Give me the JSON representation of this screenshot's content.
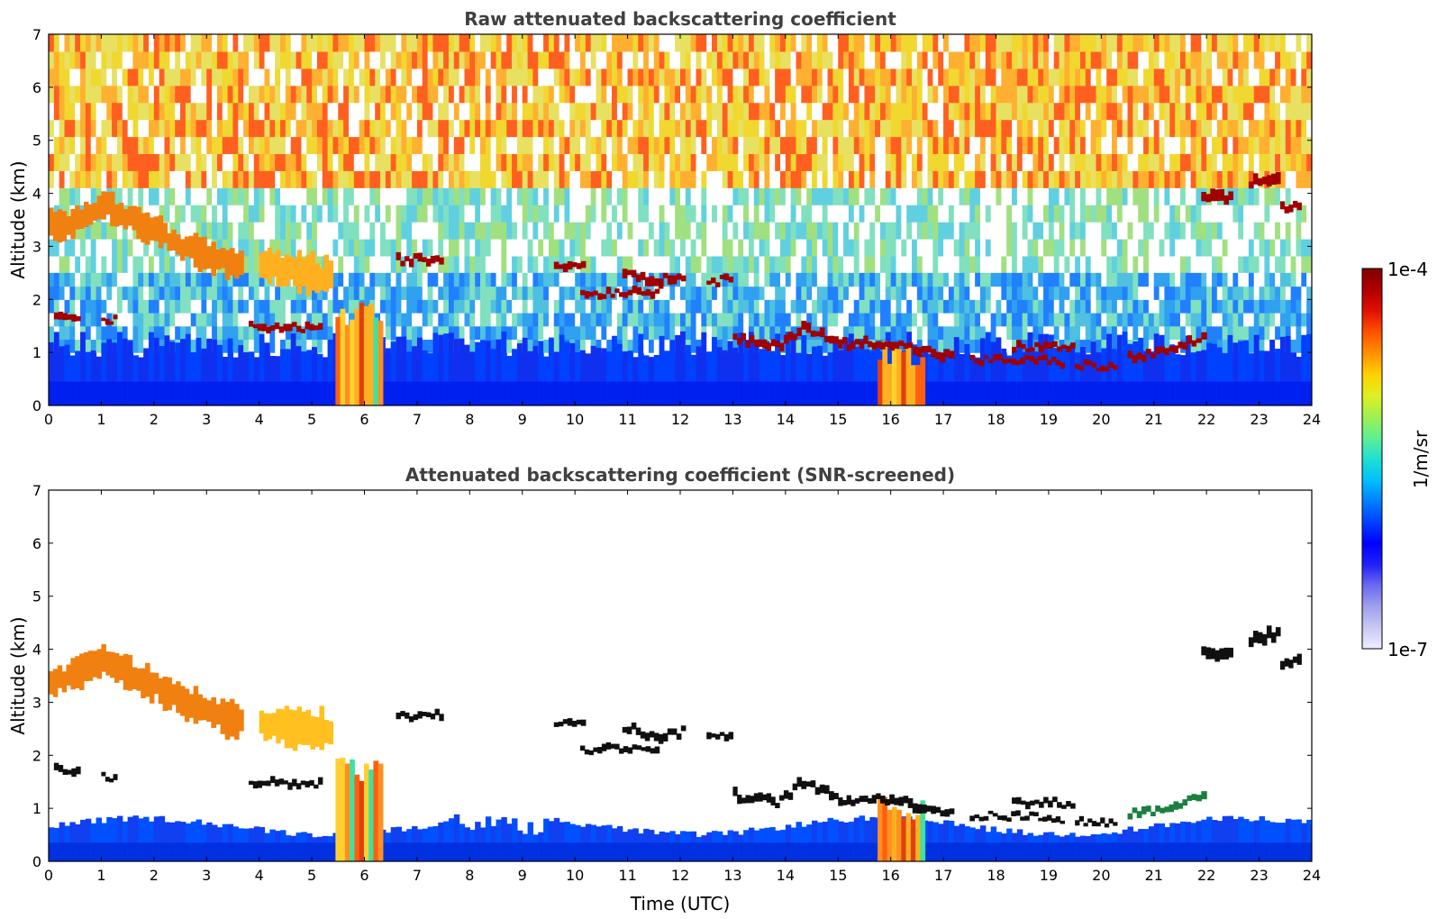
{
  "chart_data": [
    {
      "type": "heatmap",
      "title": "Raw attenuated backscattering coefficient",
      "xlabel": "",
      "ylabel": "Altitude (km)",
      "xlim": [
        0,
        24
      ],
      "ylim": [
        0,
        7
      ],
      "x_ticks": [
        "0",
        "1",
        "2",
        "3",
        "4",
        "5",
        "6",
        "7",
        "8",
        "9",
        "10",
        "11",
        "12",
        "13",
        "14",
        "15",
        "16",
        "17",
        "18",
        "19",
        "20",
        "21",
        "22",
        "23",
        "24"
      ],
      "y_ticks": [
        "0",
        "1",
        "2",
        "3",
        "4",
        "5",
        "6",
        "7"
      ],
      "background": "noisy",
      "features": [
        {
          "kind": "cloud_band",
          "points": [
            [
              0,
              3.4
            ],
            [
              0.5,
              3.5
            ],
            [
              1,
              3.8
            ],
            [
              1.5,
              3.5
            ],
            [
              2,
              3.3
            ],
            [
              2.5,
              3.0
            ],
            [
              3,
              2.8
            ],
            [
              3.7,
              2.6
            ]
          ],
          "thickness": 0.55,
          "color": "#f08010"
        },
        {
          "kind": "cloud_band",
          "points": [
            [
              4.0,
              2.6
            ],
            [
              4.8,
              2.5
            ],
            [
              5.4,
              2.4
            ]
          ],
          "thickness": 0.7,
          "color": "#ffb020"
        },
        {
          "kind": "precip_column",
          "x0": 5.45,
          "x1": 6.35,
          "top": 2.0,
          "color": "#ff8010"
        },
        {
          "kind": "precip_column",
          "x0": 15.75,
          "x1": 16.65,
          "top": 1.25,
          "color": "#ff7010"
        },
        {
          "kind": "cloud_band",
          "points": [
            [
              6.6,
              2.75
            ],
            [
              7.5,
              2.75
            ]
          ],
          "thickness": 0.14,
          "color": "#a00000"
        },
        {
          "kind": "cloud_band",
          "points": [
            [
              9.6,
              2.65
            ],
            [
              10.2,
              2.65
            ]
          ],
          "thickness": 0.14,
          "color": "#a00000"
        },
        {
          "kind": "cloud_band",
          "points": [
            [
              10.9,
              2.55
            ],
            [
              11.5,
              2.35
            ],
            [
              12.1,
              2.45
            ]
          ],
          "thickness": 0.16,
          "color": "#a00000"
        },
        {
          "kind": "cloud_band",
          "points": [
            [
              10.1,
              2.1
            ],
            [
              11.0,
              2.15
            ],
            [
              11.6,
              2.15
            ]
          ],
          "thickness": 0.12,
          "color": "#a00000"
        },
        {
          "kind": "cloud_band",
          "points": [
            [
              12.5,
              2.35
            ],
            [
              13.0,
              2.35
            ]
          ],
          "thickness": 0.12,
          "color": "#a00000"
        },
        {
          "kind": "cloud_band",
          "points": [
            [
              0.1,
              1.75
            ],
            [
              0.6,
              1.7
            ]
          ],
          "thickness": 0.14,
          "color": "#a00000"
        },
        {
          "kind": "cloud_band",
          "points": [
            [
              1.0,
              1.6
            ],
            [
              1.3,
              1.6
            ]
          ],
          "thickness": 0.1,
          "color": "#a00000"
        },
        {
          "kind": "cloud_band",
          "points": [
            [
              3.8,
              1.5
            ],
            [
              5.2,
              1.45
            ]
          ],
          "thickness": 0.12,
          "color": "#a00000"
        },
        {
          "kind": "cloud_band",
          "points": [
            [
              13.0,
              1.25
            ],
            [
              13.8,
              1.1
            ],
            [
              14.3,
              1.5
            ],
            [
              15.0,
              1.15
            ],
            [
              15.8,
              1.2
            ],
            [
              16.5,
              1.05
            ],
            [
              17.2,
              0.9
            ]
          ],
          "thickness": 0.16,
          "color": "#a00000"
        },
        {
          "kind": "cloud_band",
          "points": [
            [
              17.5,
              0.85
            ],
            [
              18.2,
              0.85
            ],
            [
              18.8,
              0.85
            ],
            [
              19.3,
              0.8
            ]
          ],
          "thickness": 0.1,
          "color": "#a00000"
        },
        {
          "kind": "cloud_band",
          "points": [
            [
              18.3,
              1.1
            ],
            [
              19.5,
              1.1
            ]
          ],
          "thickness": 0.12,
          "color": "#a00000"
        },
        {
          "kind": "cloud_band",
          "points": [
            [
              19.5,
              0.75
            ],
            [
              20.3,
              0.72
            ]
          ],
          "thickness": 0.1,
          "color": "#a00000"
        },
        {
          "kind": "cloud_band",
          "points": [
            [
              20.5,
              0.9
            ],
            [
              21.2,
              1.0
            ],
            [
              21.8,
              1.25
            ],
            [
              22.0,
              1.3
            ]
          ],
          "thickness": 0.14,
          "color": "#a00000"
        },
        {
          "kind": "cloud_band",
          "points": [
            [
              21.9,
              3.9
            ],
            [
              22.5,
              3.9
            ]
          ],
          "thickness": 0.2,
          "color": "#a00000"
        },
        {
          "kind": "cloud_band",
          "points": [
            [
              22.8,
              4.2
            ],
            [
              23.4,
              4.3
            ]
          ],
          "thickness": 0.2,
          "color": "#a00000"
        },
        {
          "kind": "cloud_band",
          "points": [
            [
              23.4,
              3.75
            ],
            [
              23.8,
              3.75
            ]
          ],
          "thickness": 0.18,
          "color": "#a00000"
        }
      ]
    },
    {
      "type": "heatmap",
      "title": "Attenuated backscattering coefficient (SNR-screened)",
      "xlabel": "Time (UTC)",
      "ylabel": "Altitude (km)",
      "xlim": [
        0,
        24
      ],
      "ylim": [
        0,
        7
      ],
      "x_ticks": [
        "0",
        "1",
        "2",
        "3",
        "4",
        "5",
        "6",
        "7",
        "8",
        "9",
        "10",
        "11",
        "12",
        "13",
        "14",
        "15",
        "16",
        "17",
        "18",
        "19",
        "20",
        "21",
        "22",
        "23",
        "24"
      ],
      "y_ticks": [
        "0",
        "1",
        "2",
        "3",
        "4",
        "5",
        "6",
        "7"
      ],
      "background": "screened",
      "features": [
        {
          "kind": "cloud_band",
          "points": [
            [
              0,
              3.4
            ],
            [
              0.5,
              3.5
            ],
            [
              1,
              3.8
            ],
            [
              1.5,
              3.5
            ],
            [
              2,
              3.3
            ],
            [
              2.5,
              3.0
            ],
            [
              3,
              2.8
            ],
            [
              3.7,
              2.6
            ]
          ],
          "thickness": 0.6,
          "color": "#f08010"
        },
        {
          "kind": "cloud_band",
          "points": [
            [
              4.0,
              2.6
            ],
            [
              4.8,
              2.5
            ],
            [
              5.4,
              2.4
            ]
          ],
          "thickness": 0.7,
          "color": "#ffc020"
        },
        {
          "kind": "precip_column",
          "x0": 5.45,
          "x1": 6.35,
          "top": 2.0,
          "color": "#ff8010"
        },
        {
          "kind": "precip_column",
          "x0": 15.75,
          "x1": 16.65,
          "top": 1.25,
          "color": "#ff7010"
        },
        {
          "kind": "cloud_band",
          "points": [
            [
              6.6,
              2.75
            ],
            [
              7.5,
              2.75
            ]
          ],
          "thickness": 0.14,
          "color": "#101010"
        },
        {
          "kind": "cloud_band",
          "points": [
            [
              9.6,
              2.65
            ],
            [
              10.2,
              2.65
            ]
          ],
          "thickness": 0.14,
          "color": "#101010"
        },
        {
          "kind": "cloud_band",
          "points": [
            [
              10.9,
              2.55
            ],
            [
              11.5,
              2.35
            ],
            [
              12.1,
              2.45
            ]
          ],
          "thickness": 0.16,
          "color": "#101010"
        },
        {
          "kind": "cloud_band",
          "points": [
            [
              10.1,
              2.1
            ],
            [
              11.0,
              2.15
            ],
            [
              11.6,
              2.15
            ]
          ],
          "thickness": 0.12,
          "color": "#101010"
        },
        {
          "kind": "cloud_band",
          "points": [
            [
              12.5,
              2.35
            ],
            [
              13.0,
              2.35
            ]
          ],
          "thickness": 0.12,
          "color": "#101010"
        },
        {
          "kind": "cloud_band",
          "points": [
            [
              0.1,
              1.75
            ],
            [
              0.6,
              1.7
            ]
          ],
          "thickness": 0.14,
          "color": "#101010"
        },
        {
          "kind": "cloud_band",
          "points": [
            [
              1.0,
              1.6
            ],
            [
              1.3,
              1.6
            ]
          ],
          "thickness": 0.1,
          "color": "#101010"
        },
        {
          "kind": "cloud_band",
          "points": [
            [
              3.8,
              1.5
            ],
            [
              5.2,
              1.45
            ]
          ],
          "thickness": 0.12,
          "color": "#101010"
        },
        {
          "kind": "cloud_band",
          "points": [
            [
              13.0,
              1.25
            ],
            [
              13.8,
              1.1
            ],
            [
              14.3,
              1.5
            ],
            [
              15.0,
              1.15
            ],
            [
              15.8,
              1.2
            ],
            [
              16.5,
              1.05
            ],
            [
              17.2,
              0.9
            ]
          ],
          "thickness": 0.16,
          "color": "#101010"
        },
        {
          "kind": "cloud_band",
          "points": [
            [
              17.5,
              0.85
            ],
            [
              18.2,
              0.85
            ],
            [
              18.8,
              0.85
            ],
            [
              19.3,
              0.8
            ]
          ],
          "thickness": 0.1,
          "color": "#101010"
        },
        {
          "kind": "cloud_band",
          "points": [
            [
              18.3,
              1.1
            ],
            [
              19.5,
              1.1
            ]
          ],
          "thickness": 0.12,
          "color": "#101010"
        },
        {
          "kind": "cloud_band",
          "points": [
            [
              19.5,
              0.75
            ],
            [
              20.3,
              0.72
            ]
          ],
          "thickness": 0.1,
          "color": "#101010"
        },
        {
          "kind": "cloud_band",
          "points": [
            [
              20.5,
              0.9
            ],
            [
              21.2,
              1.0
            ],
            [
              21.8,
              1.25
            ],
            [
              22.0,
              1.3
            ]
          ],
          "thickness": 0.14,
          "color": "#1a8040"
        },
        {
          "kind": "cloud_band",
          "points": [
            [
              21.9,
              3.9
            ],
            [
              22.5,
              3.9
            ]
          ],
          "thickness": 0.2,
          "color": "#101010"
        },
        {
          "kind": "cloud_band",
          "points": [
            [
              22.8,
              4.2
            ],
            [
              23.4,
              4.3
            ]
          ],
          "thickness": 0.2,
          "color": "#101010"
        },
        {
          "kind": "cloud_band",
          "points": [
            [
              23.4,
              3.75
            ],
            [
              23.8,
              3.75
            ]
          ],
          "thickness": 0.18,
          "color": "#101010"
        }
      ]
    }
  ],
  "colorbar": {
    "label": "1/m/sr",
    "max_label": "1e-4",
    "min_label": "1e-7",
    "scale": "log",
    "colors": [
      "#eeeeff",
      "#c8c8f4",
      "#9f9fee",
      "#6a6af0",
      "#2020f8",
      "#0000ff",
      "#0040ff",
      "#0080ff",
      "#00c0ff",
      "#20e0d0",
      "#60f090",
      "#a0f050",
      "#e0f020",
      "#ffd000",
      "#ff9000",
      "#ff5000",
      "#e01000",
      "#b00000",
      "#800000"
    ]
  }
}
